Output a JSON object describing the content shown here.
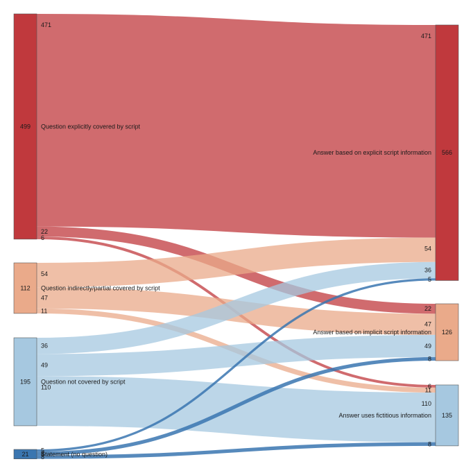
{
  "colors": {
    "red": "#c0393d",
    "salmon": "#eaaa8a",
    "light_blue": "#a6c8e0",
    "blue": "#3a76b0",
    "node_border": "#555555"
  },
  "nodes": [
    {
      "id": "q_explicit",
      "label": "Question explicitly covered by script",
      "value": "499",
      "color": "red",
      "side": "left"
    },
    {
      "id": "q_indirect",
      "label": "Question indirectly/partial covered by script",
      "value": "112",
      "color": "salmon",
      "side": "left"
    },
    {
      "id": "q_not",
      "label": "Question not covered by script",
      "value": "195",
      "color": "light_blue",
      "side": "left"
    },
    {
      "id": "statement",
      "label": "Statement (no question)",
      "value": "21",
      "color": "blue",
      "side": "left"
    },
    {
      "id": "a_explicit",
      "label": "Answer based on explicit script information",
      "value": "566",
      "color": "red",
      "side": "right"
    },
    {
      "id": "a_implicit",
      "label": "Answer based on implicit script information",
      "value": "126",
      "color": "salmon",
      "side": "right"
    },
    {
      "id": "a_fictitious",
      "label": "Answer uses fictitious information",
      "value": "135",
      "color": "light_blue",
      "side": "right"
    }
  ],
  "links": [
    {
      "source": "q_explicit",
      "target": "a_explicit",
      "value": 471,
      "label": "471"
    },
    {
      "source": "q_explicit",
      "target": "a_implicit",
      "value": 22,
      "label": "22"
    },
    {
      "source": "q_explicit",
      "target": "a_fictitious",
      "value": 6,
      "label": "6"
    },
    {
      "source": "q_indirect",
      "target": "a_explicit",
      "value": 54,
      "label": "54"
    },
    {
      "source": "q_indirect",
      "target": "a_implicit",
      "value": 47,
      "label": "47"
    },
    {
      "source": "q_indirect",
      "target": "a_fictitious",
      "value": 11,
      "label": "11"
    },
    {
      "source": "q_not",
      "target": "a_explicit",
      "value": 36,
      "label": "36"
    },
    {
      "source": "q_not",
      "target": "a_implicit",
      "value": 49,
      "label": "49"
    },
    {
      "source": "q_not",
      "target": "a_fictitious",
      "value": 110,
      "label": "110"
    },
    {
      "source": "statement",
      "target": "a_explicit",
      "value": 5,
      "label": "5"
    },
    {
      "source": "statement",
      "target": "a_implicit",
      "value": 8,
      "label": "8"
    },
    {
      "source": "statement",
      "target": "a_fictitious",
      "value": 8,
      "label": "8"
    }
  ]
}
